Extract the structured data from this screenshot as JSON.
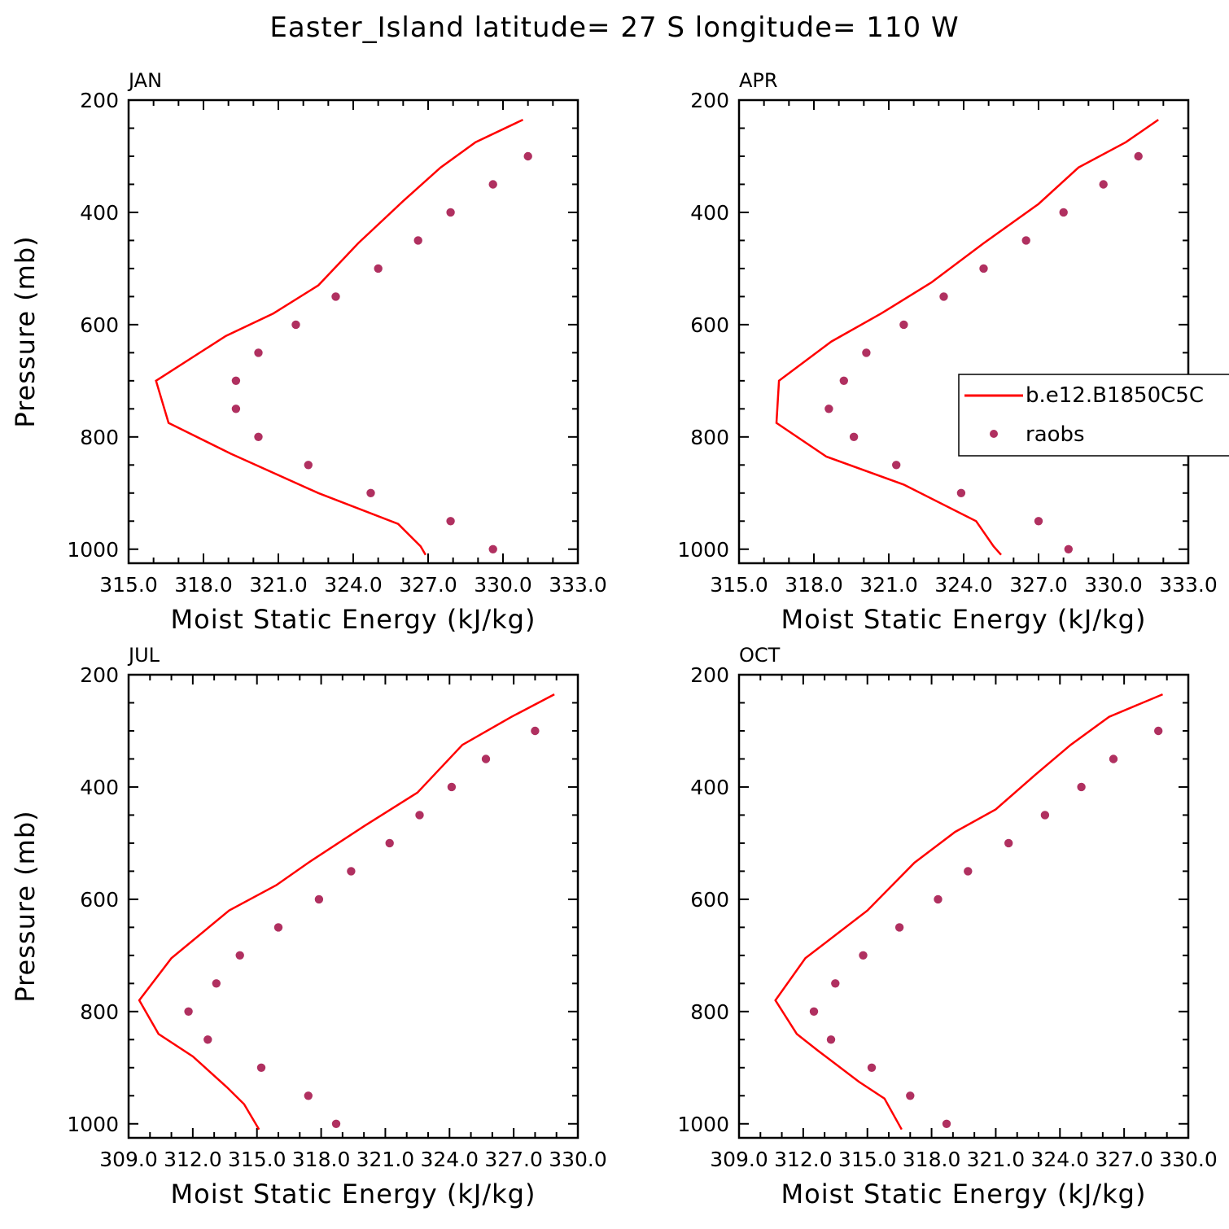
{
  "title": "Easter_Island  latitude= 27 S longitude= 110 W",
  "colors": {
    "model": "#ff0000",
    "obs": "#b03060"
  },
  "legend": {
    "model": "b.e12.B1850C5C",
    "obs": "raobs"
  },
  "chart_data": [
    {
      "type": "line",
      "panel": "JAN",
      "xlabel": "Moist Static Energy (kJ/kg)",
      "ylabel": "Pressure (mb)",
      "xlim": [
        315.0,
        333.0
      ],
      "xticks": [
        315.0,
        318.0,
        321.0,
        324.0,
        327.0,
        330.0,
        333.0
      ],
      "xtick_labels": [
        "315.0",
        "318.0",
        "321.0",
        "324.0",
        "327.0",
        "330.0",
        "333.0"
      ],
      "ylim": [
        1025,
        200
      ],
      "yticks": [
        200,
        400,
        600,
        800,
        1000
      ],
      "ytick_labels": [
        "200",
        "400",
        "600",
        "800",
        "1000"
      ],
      "series": [
        {
          "name": "b.e12.B1850C5C",
          "style": "line",
          "x": [
            330.8,
            328.9,
            327.5,
            326.0,
            324.2,
            322.6,
            320.8,
            318.9,
            316.1,
            316.6,
            319.1,
            322.6,
            325.8,
            326.7,
            326.9
          ],
          "y": [
            235,
            275,
            320,
            380,
            455,
            530,
            580,
            620,
            700,
            775,
            830,
            900,
            955,
            995,
            1010
          ]
        },
        {
          "name": "raobs",
          "style": "markers",
          "x": [
            331.0,
            329.6,
            327.9,
            326.6,
            325.0,
            323.3,
            321.7,
            320.2,
            319.3,
            319.3,
            320.2,
            322.2,
            324.7,
            327.9,
            329.6
          ],
          "y": [
            300,
            350,
            400,
            450,
            500,
            550,
            600,
            650,
            700,
            750,
            800,
            850,
            900,
            950,
            1000
          ]
        }
      ]
    },
    {
      "type": "line",
      "panel": "APR",
      "xlabel": "Moist Static Energy (kJ/kg)",
      "ylabel": "",
      "xlim": [
        315.0,
        333.0
      ],
      "xticks": [
        315.0,
        318.0,
        321.0,
        324.0,
        327.0,
        330.0,
        333.0
      ],
      "xtick_labels": [
        "315.0",
        "318.0",
        "321.0",
        "324.0",
        "327.0",
        "330.0",
        "333.0"
      ],
      "ylim": [
        1025,
        200
      ],
      "yticks": [
        200,
        400,
        600,
        800,
        1000
      ],
      "ytick_labels": [
        "200",
        "400",
        "600",
        "800",
        "1000"
      ],
      "series": [
        {
          "name": "b.e12.B1850C5C",
          "style": "line",
          "x": [
            331.8,
            330.5,
            328.6,
            327.0,
            324.8,
            322.7,
            320.7,
            318.7,
            316.6,
            316.5,
            318.5,
            321.6,
            324.5,
            325.2,
            325.5
          ],
          "y": [
            235,
            275,
            320,
            385,
            455,
            525,
            580,
            630,
            700,
            775,
            835,
            885,
            950,
            995,
            1010
          ]
        },
        {
          "name": "raobs",
          "style": "markers",
          "x": [
            331.0,
            329.6,
            328.0,
            326.5,
            324.8,
            323.2,
            321.6,
            320.1,
            319.2,
            318.6,
            319.6,
            321.3,
            323.9,
            327.0,
            328.2
          ],
          "y": [
            300,
            350,
            400,
            450,
            500,
            550,
            600,
            650,
            700,
            750,
            800,
            850,
            900,
            950,
            1000
          ]
        }
      ]
    },
    {
      "type": "line",
      "panel": "JUL",
      "xlabel": "Moist Static Energy (kJ/kg)",
      "ylabel": "Pressure (mb)",
      "xlim": [
        309.0,
        330.0
      ],
      "xticks": [
        309.0,
        312.0,
        315.0,
        318.0,
        321.0,
        324.0,
        327.0,
        330.0
      ],
      "xtick_labels": [
        "309.0",
        "312.0",
        "315.0",
        "318.0",
        "321.0",
        "324.0",
        "327.0",
        "330.0"
      ],
      "ylim": [
        1025,
        200
      ],
      "yticks": [
        200,
        400,
        600,
        800,
        1000
      ],
      "ytick_labels": [
        "200",
        "400",
        "600",
        "800",
        "1000"
      ],
      "series": [
        {
          "name": "b.e12.B1850C5C",
          "style": "line",
          "x": [
            328.9,
            326.9,
            324.6,
            322.5,
            320.0,
            317.4,
            315.9,
            313.7,
            311.0,
            309.5,
            310.4,
            312.0,
            313.6,
            314.4,
            315.1
          ],
          "y": [
            235,
            275,
            325,
            410,
            470,
            535,
            575,
            620,
            705,
            780,
            840,
            880,
            935,
            965,
            1010
          ]
        },
        {
          "name": "raobs",
          "style": "markers",
          "x": [
            328.0,
            325.7,
            324.1,
            322.6,
            321.2,
            319.4,
            317.9,
            316.0,
            314.2,
            313.1,
            311.8,
            312.7,
            315.2,
            317.4,
            318.7
          ],
          "y": [
            300,
            350,
            400,
            450,
            500,
            550,
            600,
            650,
            700,
            750,
            800,
            850,
            900,
            950,
            1000
          ]
        }
      ]
    },
    {
      "type": "line",
      "panel": "OCT",
      "xlabel": "Moist Static Energy (kJ/kg)",
      "ylabel": "",
      "xlim": [
        309.0,
        330.0
      ],
      "xticks": [
        309.0,
        312.0,
        315.0,
        318.0,
        321.0,
        324.0,
        327.0,
        330.0
      ],
      "xtick_labels": [
        "309.0",
        "312.0",
        "315.0",
        "318.0",
        "321.0",
        "324.0",
        "327.0",
        "330.0"
      ],
      "ylim": [
        1025,
        200
      ],
      "yticks": [
        200,
        400,
        600,
        800,
        1000
      ],
      "ytick_labels": [
        "200",
        "400",
        "600",
        "800",
        "1000"
      ],
      "series": [
        {
          "name": "b.e12.B1850C5C",
          "style": "line",
          "x": [
            328.8,
            326.3,
            324.5,
            322.8,
            321.0,
            319.1,
            317.2,
            315.0,
            312.1,
            310.7,
            311.7,
            312.7,
            314.6,
            315.8,
            316.6
          ],
          "y": [
            235,
            275,
            325,
            380,
            440,
            480,
            535,
            620,
            705,
            780,
            840,
            870,
            925,
            955,
            1010
          ]
        },
        {
          "name": "raobs",
          "style": "markers",
          "x": [
            328.6,
            326.5,
            325.0,
            323.3,
            321.6,
            319.7,
            318.3,
            316.5,
            314.8,
            313.5,
            312.5,
            313.3,
            315.2,
            317.0,
            318.7
          ],
          "y": [
            300,
            350,
            400,
            450,
            500,
            550,
            600,
            650,
            700,
            750,
            800,
            850,
            900,
            950,
            1000
          ]
        }
      ]
    }
  ]
}
